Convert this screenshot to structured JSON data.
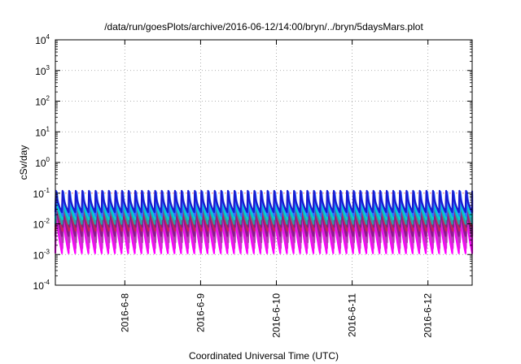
{
  "chart_data": {
    "type": "line",
    "title": "/data/run/goesPlots/archive/2016-06-12/14:00/bryn/../bryn/5daysMars.plot",
    "xlabel": "Coordinated Universal Time (UTC)",
    "ylabel": "cSv/day",
    "y_scale": "log",
    "x_range": [
      "2016-06-07 02:00",
      "2016-06-12 14:00"
    ],
    "ylim": [
      0.0001,
      10000
    ],
    "y_tick_labels": [
      {
        "base": "10",
        "exp": "-4",
        "value": 0.0001
      },
      {
        "base": "10",
        "exp": "-3",
        "value": 0.001
      },
      {
        "base": "10",
        "exp": "-2",
        "value": 0.01
      },
      {
        "base": "10",
        "exp": "-1",
        "value": 0.1
      },
      {
        "base": "10",
        "exp": "0",
        "value": 1
      },
      {
        "base": "10",
        "exp": "1",
        "value": 10
      },
      {
        "base": "10",
        "exp": "2",
        "value": 100
      },
      {
        "base": "10",
        "exp": "3",
        "value": 1000
      },
      {
        "base": "10",
        "exp": "4",
        "value": 10000
      }
    ],
    "x_ticks": [
      {
        "label": "2016-6-8",
        "date": "2016-06-08 00:00"
      },
      {
        "label": "2016-6-9",
        "date": "2016-06-09 00:00"
      },
      {
        "label": "2016-6-10",
        "date": "2016-06-10 00:00"
      },
      {
        "label": "2016-6-11",
        "date": "2016-06-11 00:00"
      },
      {
        "label": "2016-6-12",
        "date": "2016-06-12 00:00"
      }
    ],
    "grid": true,
    "legend": "none",
    "pattern": {
      "cycles": 63,
      "peak_value": 0.1,
      "trough_values": [
        0.001,
        0.003
      ]
    },
    "series": [
      {
        "color": "#ff00ff",
        "peak": 0.06,
        "trough": 0.0011
      },
      {
        "color": "#dd22dd",
        "peak": 0.07,
        "trough": 0.0016
      },
      {
        "color": "#b040b0",
        "peak": 0.08,
        "trough": 0.0025
      },
      {
        "color": "#8b1a8b",
        "peak": 0.09,
        "trough": 0.004
      },
      {
        "color": "#cc2255",
        "peak": 0.1,
        "trough": 0.006
      },
      {
        "color": "#7a2a7a",
        "peak": 0.09,
        "trough": 0.008
      },
      {
        "color": "#2a9fa8",
        "peak": 0.1,
        "trough": 0.01
      },
      {
        "color": "#00d0d0",
        "peak": 0.08,
        "trough": 0.014
      },
      {
        "color": "#3070ff",
        "peak": 0.11,
        "trough": 0.018
      },
      {
        "color": "#1a1ad0",
        "peak": 0.12,
        "trough": 0.024
      }
    ]
  }
}
